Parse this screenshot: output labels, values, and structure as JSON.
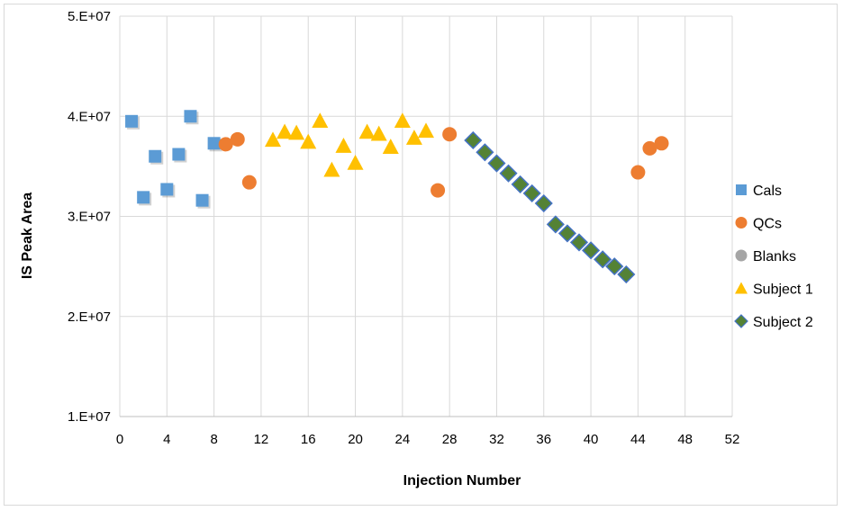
{
  "chart_data": {
    "type": "scatter",
    "title": "",
    "xlabel": "Injection Number",
    "ylabel": "IS Peak Area",
    "xlim": [
      0,
      52
    ],
    "ylim": [
      10000000,
      50000000
    ],
    "x_ticks": [
      0,
      4,
      8,
      12,
      16,
      20,
      24,
      28,
      32,
      36,
      40,
      44,
      48,
      52
    ],
    "x_tick_labels": [
      "0",
      "4",
      "8",
      "12",
      "16",
      "20",
      "24",
      "28",
      "32",
      "36",
      "40",
      "44",
      "48",
      "52"
    ],
    "y_ticks": [
      10000000,
      20000000,
      30000000,
      40000000,
      50000000
    ],
    "y_tick_labels": [
      "1.E+07",
      "2.E+07",
      "3.E+07",
      "4.E+07",
      "5.E+07"
    ],
    "grid": true,
    "legend_position": "right",
    "series": [
      {
        "name": "Cals",
        "marker": "square",
        "color": "#5B9BD5",
        "x": [
          1,
          2,
          3,
          4,
          5,
          6,
          7,
          8
        ],
        "y": [
          39500000,
          31900000,
          36000000,
          32700000,
          36200000,
          40000000,
          31600000,
          37300000
        ]
      },
      {
        "name": "QCs",
        "marker": "circle",
        "color": "#ED7D31",
        "x": [
          9,
          10,
          11,
          27,
          28,
          44,
          45,
          46
        ],
        "y": [
          37200000,
          37700000,
          33400000,
          32600000,
          38200000,
          34400000,
          36800000,
          37300000
        ]
      },
      {
        "name": "Blanks",
        "marker": "circle",
        "color": "#A5A5A5",
        "x": [],
        "y": []
      },
      {
        "name": "Subject 1",
        "marker": "triangle",
        "color": "#FFC000",
        "x": [
          13,
          14,
          15,
          16,
          17,
          18,
          19,
          20,
          21,
          22,
          23,
          24,
          25,
          26
        ],
        "y": [
          37600000,
          38400000,
          38300000,
          37400000,
          39500000,
          34600000,
          37000000,
          35300000,
          38400000,
          38200000,
          36900000,
          39500000,
          37800000,
          38500000
        ]
      },
      {
        "name": "Subject 2",
        "marker": "diamond",
        "color": "#548235",
        "edge_color": "#4472C4",
        "x": [
          30,
          31,
          32,
          33,
          34,
          35,
          36,
          37,
          38,
          39,
          40,
          41,
          42,
          43
        ],
        "y": [
          37600000,
          36400000,
          35300000,
          34300000,
          33200000,
          32300000,
          31300000,
          29200000,
          28300000,
          27400000,
          26600000,
          25700000,
          25000000,
          24200000
        ]
      }
    ]
  }
}
